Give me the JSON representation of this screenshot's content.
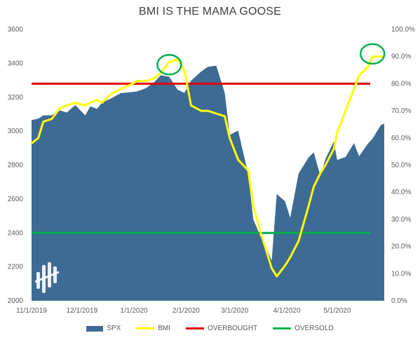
{
  "chart_data": {
    "type": "area+line",
    "title": "BMI IS THE MAMA GOOSE",
    "x_tick_labels": [
      "11/1/2019",
      "12/1/2019",
      "1/1/2020",
      "2/1/2020",
      "3/1/2020",
      "4/1/2020",
      "5/1/2020"
    ],
    "y_left": {
      "ylim": [
        2000,
        3600
      ],
      "ticks": [
        "2000",
        "2200",
        "2400",
        "2600",
        "2800",
        "3000",
        "3200",
        "3400",
        "3600"
      ]
    },
    "y_right": {
      "ylim": [
        0,
        100
      ],
      "ticks": [
        "0.0%",
        "10.0%",
        "20.0%",
        "30.0%",
        "40.0%",
        "50.0%",
        "60.0%",
        "70.0%",
        "80.0%",
        "90.0%",
        "100.0%"
      ]
    },
    "series": [
      {
        "name": "SPX",
        "type": "area",
        "axis": "left",
        "color": "#3d6b94",
        "x": [
          "2019-11-01",
          "2019-11-05",
          "2019-11-08",
          "2019-11-13",
          "2019-11-18",
          "2019-11-22",
          "2019-11-27",
          "2019-12-03",
          "2019-12-06",
          "2019-12-10",
          "2019-12-13",
          "2019-12-18",
          "2019-12-24",
          "2019-12-31",
          "2020-01-03",
          "2020-01-08",
          "2020-01-13",
          "2020-01-17",
          "2020-01-22",
          "2020-01-27",
          "2020-01-31",
          "2020-02-04",
          "2020-02-10",
          "2020-02-14",
          "2020-02-19",
          "2020-02-24",
          "2020-02-27",
          "2020-03-03",
          "2020-03-09",
          "2020-03-12",
          "2020-03-16",
          "2020-03-20",
          "2020-03-23",
          "2020-03-26",
          "2020-03-31",
          "2020-04-03",
          "2020-04-08",
          "2020-04-14",
          "2020-04-17",
          "2020-04-21",
          "2020-04-24",
          "2020-04-29",
          "2020-05-01",
          "2020-05-06",
          "2020-05-11",
          "2020-05-14",
          "2020-05-19",
          "2020-05-22",
          "2020-05-27",
          "2020-05-29"
        ],
        "values": [
          3066,
          3074,
          3093,
          3094,
          3122,
          3110,
          3154,
          3093,
          3146,
          3132,
          3169,
          3191,
          3224,
          3231,
          3235,
          3253,
          3289,
          3330,
          3321,
          3244,
          3226,
          3298,
          3352,
          3380,
          3386,
          3226,
          2979,
          3003,
          2747,
          2481,
          2386,
          2305,
          2237,
          2630,
          2585,
          2489,
          2750,
          2846,
          2875,
          2737,
          2837,
          2939,
          2830,
          2848,
          2930,
          2852,
          2923,
          2955,
          3036,
          3044
        ]
      },
      {
        "name": "BMI",
        "type": "line",
        "axis": "right",
        "color": "#ffff00",
        "x": [
          "2019-11-01",
          "2019-11-05",
          "2019-11-08",
          "2019-11-13",
          "2019-11-18",
          "2019-11-22",
          "2019-11-27",
          "2019-12-03",
          "2019-12-06",
          "2019-12-10",
          "2019-12-13",
          "2019-12-18",
          "2019-12-24",
          "2019-12-31",
          "2020-01-03",
          "2020-01-08",
          "2020-01-13",
          "2020-01-17",
          "2020-01-22",
          "2020-01-27",
          "2020-01-31",
          "2020-02-04",
          "2020-02-10",
          "2020-02-14",
          "2020-02-19",
          "2020-02-24",
          "2020-02-27",
          "2020-03-03",
          "2020-03-09",
          "2020-03-12",
          "2020-03-16",
          "2020-03-20",
          "2020-03-23",
          "2020-03-26",
          "2020-03-31",
          "2020-04-03",
          "2020-04-08",
          "2020-04-14",
          "2020-04-17",
          "2020-04-21",
          "2020-04-24",
          "2020-04-29",
          "2020-05-01",
          "2020-05-06",
          "2020-05-11",
          "2020-05-14",
          "2020-05-19",
          "2020-05-22",
          "2020-05-27",
          "2020-05-29"
        ],
        "values": [
          58,
          60,
          66,
          67,
          71,
          72,
          73,
          72,
          73,
          74,
          73,
          76,
          78,
          80,
          81,
          81,
          82,
          84,
          88,
          89,
          85,
          72,
          70,
          70,
          69,
          68,
          60,
          52,
          48,
          35,
          26,
          18,
          12,
          9,
          13,
          16,
          22,
          35,
          42,
          47,
          50,
          56,
          62,
          70,
          78,
          83,
          86,
          90,
          90,
          90
        ]
      },
      {
        "name": "OVERBOUGHT",
        "type": "hline",
        "axis": "right",
        "value": 80,
        "color": "#e00000"
      },
      {
        "name": "OVERSOLD",
        "type": "hline",
        "axis": "right",
        "value": 25,
        "color": "#00b050"
      }
    ],
    "annotations": [
      {
        "type": "circle",
        "x": "2020-01-22",
        "y": 87,
        "axis": "right",
        "color": "#00b050"
      },
      {
        "type": "circle",
        "x": "2020-05-22",
        "y": 91,
        "axis": "right",
        "color": "#00b050"
      }
    ],
    "legend": {
      "position": "bottom",
      "entries": [
        "SPX",
        "BMI",
        "OVERBOUGHT",
        "OVERSOLD"
      ]
    },
    "grid": false
  }
}
